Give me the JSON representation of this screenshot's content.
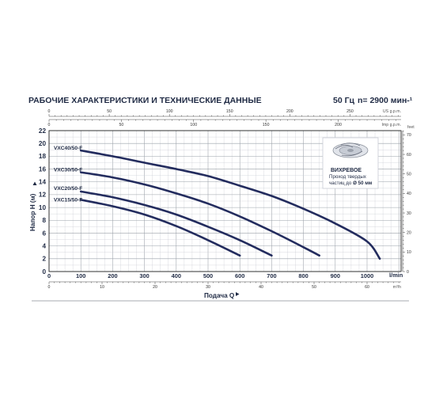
{
  "header": {
    "title": "РАБОЧИЕ ХАРАКТЕРИСТИКИ И ТЕХНИЧЕСКИЕ ДАННЫЕ",
    "frequency": "50 Гц",
    "speed": "n= 2900 мин-¹"
  },
  "inset": {
    "title": "ВИХРЕВОЕ",
    "line1": "Проход твердых",
    "line2_prefix": "частиц до ",
    "line2_strong": "Ø 50 мм"
  },
  "chart_data": {
    "type": "line",
    "xlabel": "Подача Q",
    "ylabel": "Напор H (м)",
    "x_unit": "l/min",
    "xlim": [
      0,
      1100
    ],
    "ylim": [
      0,
      22
    ],
    "x_ticks": [
      0,
      100,
      200,
      300,
      400,
      500,
      600,
      700,
      800,
      900,
      1000
    ],
    "y_ticks": [
      0,
      2,
      4,
      6,
      8,
      10,
      12,
      14,
      16,
      18,
      20,
      22
    ],
    "secondary_axes": {
      "us_gpm": {
        "unit": "US g.p.m.",
        "ticks": [
          0,
          50,
          100,
          150,
          200,
          250
        ]
      },
      "imp_gpm": {
        "unit": "Imp g.p.m.",
        "ticks": [
          0,
          50,
          100,
          150,
          200
        ]
      },
      "feet": {
        "unit": "feet",
        "ticks": [
          0,
          10,
          20,
          30,
          40,
          50,
          60,
          70
        ]
      },
      "m3h": {
        "unit": "m³/h",
        "ticks": [
          0,
          10,
          20,
          30,
          40,
          50,
          60
        ]
      }
    },
    "series": [
      {
        "name": "VXC40/50-F",
        "x": [
          100,
          200,
          300,
          400,
          500,
          600,
          700,
          800,
          900,
          1000,
          1040
        ],
        "y": [
          18.9,
          18.0,
          17.0,
          16.0,
          14.9,
          13.4,
          11.8,
          9.8,
          7.5,
          4.7,
          2.0
        ]
      },
      {
        "name": "VXC30/50-F",
        "x": [
          100,
          200,
          300,
          400,
          500,
          600,
          700,
          800,
          850
        ],
        "y": [
          15.5,
          14.7,
          13.6,
          12.2,
          10.6,
          8.6,
          6.3,
          3.8,
          2.5
        ]
      },
      {
        "name": "VXC20/50-F",
        "x": [
          100,
          200,
          300,
          400,
          500,
          600,
          700
        ],
        "y": [
          12.5,
          11.6,
          10.4,
          8.9,
          7.0,
          4.9,
          2.5
        ]
      },
      {
        "name": "VXC15/50-F",
        "x": [
          100,
          200,
          300,
          400,
          500,
          600
        ],
        "y": [
          11.2,
          10.2,
          8.9,
          7.1,
          4.9,
          2.5
        ]
      }
    ],
    "grid": true,
    "line_color": "#232c5e"
  }
}
